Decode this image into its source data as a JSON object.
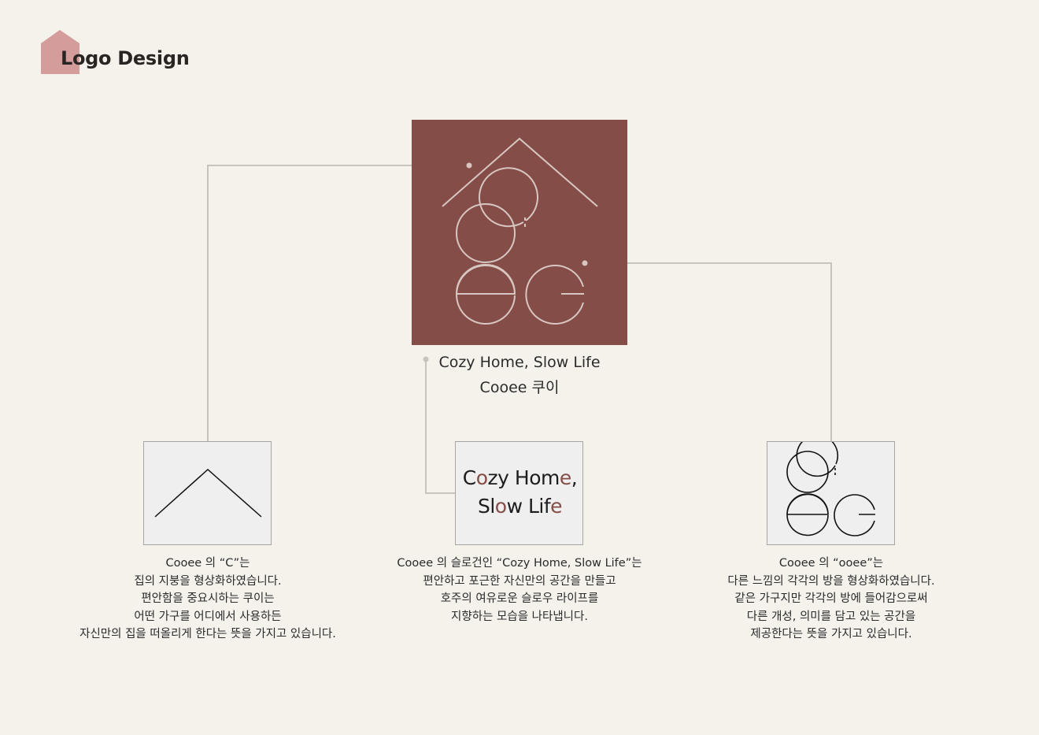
{
  "header": {
    "title": "Logo Design"
  },
  "colors": {
    "background": "#f5f2ec",
    "brand": "#854d48",
    "header_mark": "#d49d9c",
    "card_bg": "#efefef",
    "connector": "#c8c3bb"
  },
  "main_logo": {
    "slogan": "Cozy Home, Slow Life",
    "name": "Cooee 쿠이"
  },
  "cards": {
    "slogan_card": {
      "line1_prefix": "C",
      "line1_accent": "o",
      "line1_mid": "zy Hom",
      "line1_accent2": "e",
      "line1_suffix": ",",
      "line2_prefix": "Sl",
      "line2_accent": "o",
      "line2_mid": "w Lif",
      "line2_accent2": "e"
    }
  },
  "descriptions": {
    "roof": [
      "Cooee 의 “C”는",
      "집의 지붕을 형상화하였습니다.",
      "편안함을 중요시하는 쿠이는",
      "어떤 가구를 어디에서 사용하든",
      "자신만의 집을 떠올리게 한다는 뜻을 가지고 있습니다."
    ],
    "slogan": [
      "Cooee 의 슬로건인 “Cozy Home, Slow Life”는",
      "편안하고 포근한 자신만의 공간을 만들고",
      "호주의 여유로운 슬로우 라이프를",
      "지향하는 모습을 나타냅니다."
    ],
    "letters": [
      "Cooee 의 “ooee”는",
      "다른 느낌의 각각의 방을 형상화하였습니다.",
      "같은 가구지만 각각의 방에 들어감으로써",
      "다른 개성, 의미를 담고 있는 공간을",
      "제공한다는 뜻을 가지고 있습니다."
    ]
  }
}
